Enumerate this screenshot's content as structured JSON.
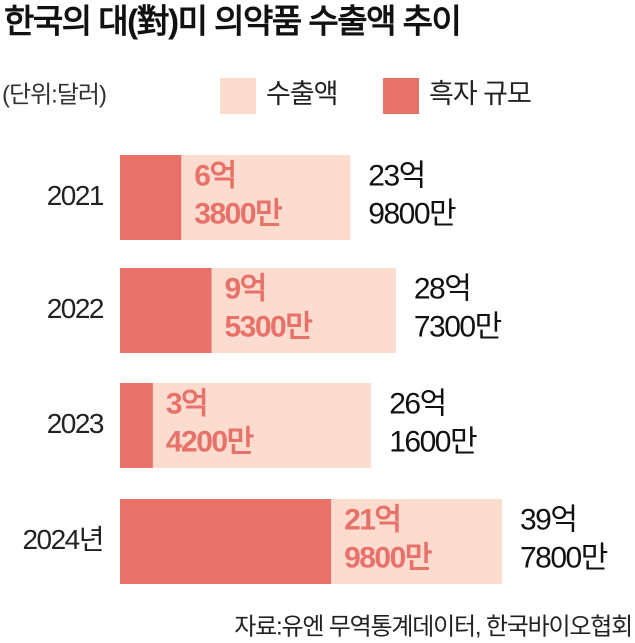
{
  "chart_data": {
    "type": "overlap-hbar",
    "title": "한국의 대(對)미 의약품 수출액 추이",
    "unit_note": "(단위:달러)",
    "source": "자료:유엔 무역통계데이터, 한국바이오협회",
    "categories": [
      "2021",
      "2022",
      "2023",
      "2024년"
    ],
    "series": [
      {
        "name": "수출액",
        "color": "#fbdccf",
        "values": [
          2398000000,
          2873000000,
          2616000000,
          3978000000
        ],
        "value_labels": [
          [
            "23억",
            "9800만"
          ],
          [
            "28억",
            "7300만"
          ],
          [
            "26억",
            "1600만"
          ],
          [
            "39억",
            "7800만"
          ]
        ]
      },
      {
        "name": "흑자 규모",
        "color": "#e8726a",
        "values": [
          638000000,
          953000000,
          342000000,
          2198000000
        ],
        "value_labels": [
          [
            "6억",
            "3800만"
          ],
          [
            "9억",
            "5300만"
          ],
          [
            "3억",
            "4200만"
          ],
          [
            "21억",
            "9800만"
          ]
        ]
      }
    ]
  }
}
